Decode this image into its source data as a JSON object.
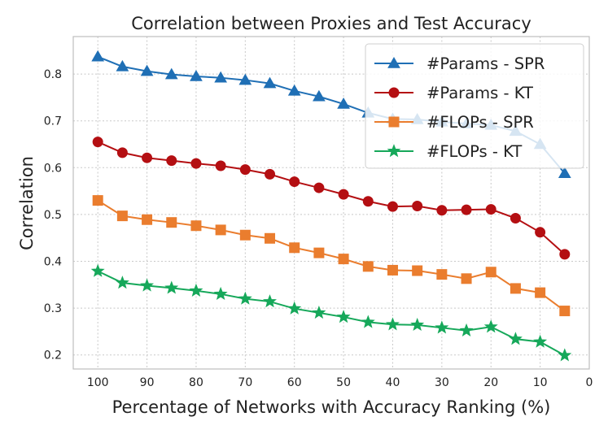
{
  "chart_data": {
    "type": "line",
    "title": "Correlation between Proxies and Test Accuracy",
    "xlabel": "Percentage of Networks with Accuracy Ranking (%)",
    "ylabel": "Correlation",
    "xlim": [
      105,
      0
    ],
    "ylim": [
      0.17,
      0.88
    ],
    "xticks": [
      100,
      90,
      80,
      70,
      60,
      50,
      40,
      30,
      20,
      10,
      0
    ],
    "yticks": [
      0.2,
      0.3,
      0.4,
      0.5,
      0.6,
      0.7,
      0.8
    ],
    "grid": true,
    "legend_position": "top-right",
    "x": [
      100,
      95,
      90,
      85,
      80,
      75,
      70,
      65,
      60,
      55,
      50,
      45,
      40,
      35,
      30,
      25,
      20,
      15,
      10,
      5
    ],
    "series": [
      {
        "name": "#Params - SPR",
        "color": "#1f6fb5",
        "marker": "triangle",
        "values": [
          0.837,
          0.816,
          0.806,
          0.799,
          0.795,
          0.792,
          0.787,
          0.78,
          0.764,
          0.752,
          0.736,
          0.717,
          0.704,
          0.703,
          0.698,
          0.694,
          0.691,
          0.678,
          0.65,
          0.588
        ]
      },
      {
        "name": "#Params - KT",
        "color": "#b40f12",
        "marker": "circle",
        "values": [
          0.655,
          0.632,
          0.621,
          0.615,
          0.609,
          0.604,
          0.596,
          0.586,
          0.57,
          0.557,
          0.543,
          0.528,
          0.517,
          0.518,
          0.509,
          0.51,
          0.511,
          0.492,
          0.462,
          0.415
        ]
      },
      {
        "name": "#FLOPs - SPR",
        "color": "#ea7d2e",
        "marker": "square",
        "values": [
          0.53,
          0.497,
          0.489,
          0.483,
          0.476,
          0.467,
          0.456,
          0.449,
          0.429,
          0.418,
          0.405,
          0.389,
          0.381,
          0.38,
          0.372,
          0.363,
          0.377,
          0.342,
          0.333,
          0.294
        ]
      },
      {
        "name": "#FLOPs - KT",
        "color": "#16a85a",
        "marker": "star",
        "values": [
          0.379,
          0.354,
          0.348,
          0.343,
          0.337,
          0.33,
          0.32,
          0.314,
          0.299,
          0.29,
          0.281,
          0.27,
          0.265,
          0.264,
          0.258,
          0.252,
          0.26,
          0.234,
          0.228,
          0.199
        ]
      }
    ]
  }
}
